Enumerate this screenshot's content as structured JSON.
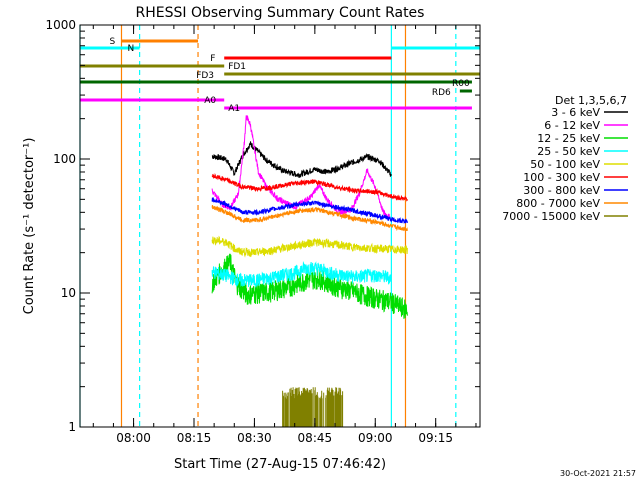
{
  "chart_data": {
    "type": "line",
    "title": "RHESSI Observing Summary Count Rates",
    "xlabel": "Start Time (27-Aug-15 07:46:42)",
    "ylabel": "Count Rate (s⁻¹ detector⁻¹)",
    "y_scale": "log",
    "xlim": [
      "07:46:42",
      "09:26:00"
    ],
    "ylim": [
      1,
      1000
    ],
    "x_ticks": [
      "08:00",
      "08:15",
      "08:30",
      "08:45",
      "09:00",
      "09:15"
    ],
    "y_ticks": [
      {
        "value": 1,
        "label": "1"
      },
      {
        "value": 10,
        "label": "10"
      },
      {
        "value": 100,
        "label": "100"
      },
      {
        "value": 1000,
        "label": "1000"
      }
    ],
    "legend_title": "Det 1,3,5,6,7",
    "legend_position": "right",
    "data_window": [
      "08:19:30",
      "09:08:00"
    ],
    "series": [
      {
        "name": "3 - 6 keV",
        "color": "#000000",
        "points": [
          [
            "08:19:30",
            105
          ],
          [
            "08:23:00",
            100
          ],
          [
            "08:25:00",
            78
          ],
          [
            "08:27:00",
            105
          ],
          [
            "08:29:00",
            130
          ],
          [
            "08:33:00",
            98
          ],
          [
            "08:37:00",
            82
          ],
          [
            "08:41:00",
            76
          ],
          [
            "08:45:00",
            84
          ],
          [
            "08:48:00",
            80
          ],
          [
            "08:51:00",
            86
          ],
          [
            "08:55:00",
            96
          ],
          [
            "08:58:00",
            104
          ],
          [
            "09:01:00",
            97
          ],
          [
            "09:04:00",
            76
          ]
        ]
      },
      {
        "name": "6 - 12 keV",
        "color": "#ff00ff",
        "points": [
          [
            "08:19:30",
            58
          ],
          [
            "08:22:00",
            46
          ],
          [
            "08:24:00",
            43
          ],
          [
            "08:26:00",
            55
          ],
          [
            "08:27:30",
            135
          ],
          [
            "08:28:00",
            210
          ],
          [
            "08:29:00",
            180
          ],
          [
            "08:31:00",
            80
          ],
          [
            "08:33:00",
            62
          ],
          [
            "08:36:00",
            50
          ],
          [
            "08:40:00",
            44
          ],
          [
            "08:44:00",
            52
          ],
          [
            "08:46:00",
            64
          ],
          [
            "08:48:00",
            50
          ],
          [
            "08:51:00",
            40
          ],
          [
            "08:54:00",
            42
          ],
          [
            "08:56:00",
            55
          ],
          [
            "08:58:00",
            82
          ],
          [
            "09:00:00",
            62
          ],
          [
            "09:02:00",
            40
          ],
          [
            "09:03:30",
            37
          ]
        ]
      },
      {
        "name": "12 - 25 keV",
        "color": "#00dd00",
        "points": [
          [
            "08:19:30",
            12
          ],
          [
            "08:22:00",
            15
          ],
          [
            "08:24:00",
            17
          ],
          [
            "08:25:30",
            12
          ],
          [
            "08:28:00",
            9.8
          ],
          [
            "08:33:00",
            10.2
          ],
          [
            "08:38:00",
            11
          ],
          [
            "08:43:00",
            12.6
          ],
          [
            "08:46:00",
            13
          ],
          [
            "08:50:00",
            11.4
          ],
          [
            "08:55:00",
            10.2
          ],
          [
            "09:00:00",
            9.2
          ],
          [
            "09:04:00",
            8.6
          ],
          [
            "09:08:00",
            7.5
          ]
        ]
      },
      {
        "name": "25 - 50 keV",
        "color": "#00ffff",
        "points": [
          [
            "08:19:30",
            14.5
          ],
          [
            "08:23:00",
            13.5
          ],
          [
            "08:26:00",
            12.5
          ],
          [
            "08:30:00",
            12.4
          ],
          [
            "08:35:00",
            13.2
          ],
          [
            "08:40:00",
            14.2
          ],
          [
            "08:43:00",
            15.5
          ],
          [
            "08:46:00",
            15.2
          ],
          [
            "08:50:00",
            13.8
          ],
          [
            "08:55:00",
            13.2
          ],
          [
            "09:00:00",
            13.6
          ],
          [
            "09:04:00",
            13
          ]
        ]
      },
      {
        "name": "50 - 100 keV",
        "color": "#dddd00",
        "points": [
          [
            "08:19:30",
            25
          ],
          [
            "08:23:00",
            24
          ],
          [
            "08:26:00",
            20.5
          ],
          [
            "08:30:00",
            20
          ],
          [
            "08:35:00",
            21
          ],
          [
            "08:40:00",
            22.5
          ],
          [
            "08:45:00",
            24
          ],
          [
            "08:50:00",
            23
          ],
          [
            "08:55:00",
            22
          ],
          [
            "09:00:00",
            21.5
          ],
          [
            "09:08:00",
            21
          ]
        ]
      },
      {
        "name": "100 - 300 keV",
        "color": "#ff0000",
        "points": [
          [
            "08:19:30",
            75
          ],
          [
            "08:23:00",
            70
          ],
          [
            "08:27:00",
            62
          ],
          [
            "08:31:00",
            60
          ],
          [
            "08:35:00",
            62
          ],
          [
            "08:40:00",
            66
          ],
          [
            "08:45:00",
            68
          ],
          [
            "08:50:00",
            62
          ],
          [
            "08:55:00",
            58
          ],
          [
            "09:00:00",
            57
          ],
          [
            "09:05:00",
            52
          ],
          [
            "09:08:00",
            50
          ]
        ]
      },
      {
        "name": "300 - 800 keV",
        "color": "#0000ff",
        "points": [
          [
            "08:19:30",
            50
          ],
          [
            "08:23:00",
            46
          ],
          [
            "08:27:00",
            40
          ],
          [
            "08:31:00",
            40
          ],
          [
            "08:36:00",
            43
          ],
          [
            "08:41:00",
            46
          ],
          [
            "08:45:00",
            47
          ],
          [
            "08:50:00",
            44
          ],
          [
            "08:55:00",
            41
          ],
          [
            "09:00:00",
            38
          ],
          [
            "09:05:00",
            35
          ],
          [
            "09:08:00",
            34
          ]
        ]
      },
      {
        "name": "800 - 7000 keV",
        "color": "#ff8800",
        "points": [
          [
            "08:19:30",
            44
          ],
          [
            "08:23:00",
            40
          ],
          [
            "08:27:00",
            35
          ],
          [
            "08:31:00",
            35
          ],
          [
            "08:36:00",
            38
          ],
          [
            "08:41:00",
            41
          ],
          [
            "08:45:00",
            42
          ],
          [
            "08:50:00",
            39
          ],
          [
            "08:55:00",
            36
          ],
          [
            "09:00:00",
            34
          ],
          [
            "09:05:00",
            31
          ],
          [
            "09:08:00",
            30
          ]
        ]
      },
      {
        "name": "7000 - 15000 keV",
        "color": "#808000",
        "points": [
          [
            "08:37:00",
            1.5
          ],
          [
            "08:52:00",
            1.5
          ]
        ]
      }
    ],
    "annotations": [
      {
        "label": "S",
        "color": "#ff8000",
        "start": "07:57:00",
        "end": "08:16:00"
      },
      {
        "label": "N",
        "color": "#00ffff",
        "start": "07:46:42",
        "end": "07:50:00"
      },
      {
        "label": "F",
        "color": "#ff0000",
        "start": "08:22:30",
        "end": "09:04:00"
      },
      {
        "label": "FD1",
        "color": "#808000",
        "start": "07:46:42",
        "end": "08:22:30"
      },
      {
        "label": "FD3",
        "color": "#808000",
        "start": "08:22:30",
        "end": "09:26:00"
      },
      {
        "label": "R00",
        "color": "#006600",
        "start": "07:46:42",
        "end": "09:24:00"
      },
      {
        "label": "RD6",
        "color": "#006600",
        "start": "09:21:00",
        "end": "09:24:00"
      },
      {
        "label": "A0",
        "color": "#ff00ff",
        "start": "07:46:42",
        "end": "08:22:30"
      },
      {
        "label": "A1",
        "color": "#ff00ff",
        "start": "08:22:30",
        "end": "09:24:00"
      }
    ]
  },
  "footer": {
    "timestamp": "30-Oct-2021 21:57"
  }
}
